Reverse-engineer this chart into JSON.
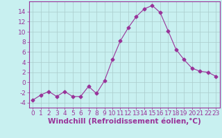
{
  "x": [
    0,
    1,
    2,
    3,
    4,
    5,
    6,
    7,
    8,
    9,
    10,
    11,
    12,
    13,
    14,
    15,
    16,
    17,
    18,
    19,
    20,
    21,
    22,
    23
  ],
  "y": [
    -3.5,
    -2.5,
    -1.8,
    -2.8,
    -1.8,
    -2.8,
    -2.8,
    -0.8,
    -2.2,
    0.3,
    4.5,
    8.2,
    10.8,
    13.0,
    14.5,
    15.2,
    13.8,
    10.2,
    6.5,
    4.5,
    2.8,
    2.2,
    2.0,
    1.2
  ],
  "line_color": "#993399",
  "marker": "D",
  "marker_size": 2.5,
  "bg_color": "#c8f0f0",
  "grid_color": "#aacccc",
  "xlabel": "Windchill (Refroidissement éolien,°C)",
  "xlim": [
    -0.5,
    23.5
  ],
  "ylim": [
    -5,
    16
  ],
  "yticks": [
    -4,
    -2,
    0,
    2,
    4,
    6,
    8,
    10,
    12,
    14
  ],
  "xticks": [
    0,
    1,
    2,
    3,
    4,
    5,
    6,
    7,
    8,
    9,
    10,
    11,
    12,
    13,
    14,
    15,
    16,
    17,
    18,
    19,
    20,
    21,
    22,
    23
  ],
  "tick_label_size": 6.5,
  "xlabel_size": 7.5
}
